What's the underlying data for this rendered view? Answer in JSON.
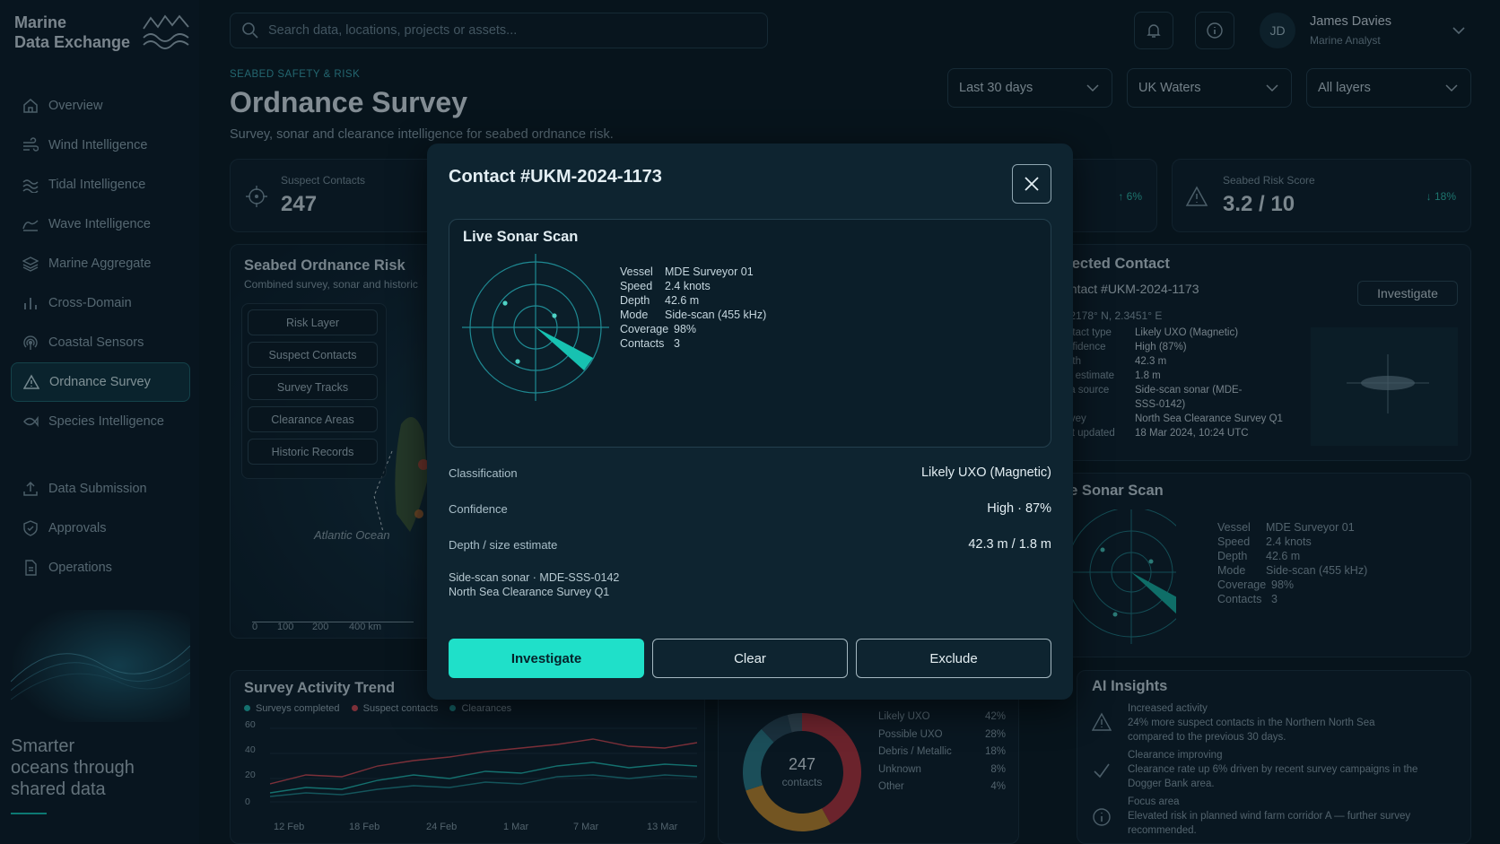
{
  "app": {
    "name_line1": "Marine",
    "name_line2": "Data Exchange",
    "tagline_1": "Smarter",
    "tagline_2": "oceans through",
    "tagline_3": "shared data"
  },
  "sidebar": {
    "items": [
      {
        "label": "Overview",
        "icon": "home-icon"
      },
      {
        "label": "Wind Intelligence",
        "icon": "wind-icon"
      },
      {
        "label": "Tidal Intelligence",
        "icon": "tide-icon"
      },
      {
        "label": "Wave Intelligence",
        "icon": "wave-icon"
      },
      {
        "label": "Marine Aggregate",
        "icon": "layers-icon"
      },
      {
        "label": "Cross-Domain",
        "icon": "bars-icon"
      },
      {
        "label": "Coastal Sensors",
        "icon": "sensor-icon"
      },
      {
        "label": "Ordnance Survey",
        "icon": "warning-icon"
      },
      {
        "label": "Species Intelligence",
        "icon": "fish-icon"
      },
      {
        "label": "Data Submission",
        "icon": "upload-icon"
      },
      {
        "label": "Approvals",
        "icon": "shield-check-icon"
      },
      {
        "label": "Operations",
        "icon": "document-icon"
      }
    ]
  },
  "header": {
    "search_placeholder": "Search data, locations, projects or assets...",
    "user_initials": "JD",
    "user_name": "James Davies",
    "user_role": "Marine Analyst"
  },
  "page": {
    "eyebrow": "SEABED SAFETY & RISK",
    "title": "Ordnance Survey",
    "subtitle": "Survey, sonar and clearance intelligence for seabed ordnance risk."
  },
  "filters": {
    "period": "Last 30 days",
    "region": "UK Waters",
    "layers": "All layers"
  },
  "kpis": {
    "suspect_label": "Suspect Contacts",
    "suspect_value": "247",
    "third_delta": "↑ 6%",
    "risk_label": "Seabed Risk Score",
    "risk_value": "3.2 / 10",
    "risk_delta": "↓ 18%"
  },
  "map": {
    "title": "Seabed Ordnance Risk",
    "subtitle": "Combined survey, sonar and historic",
    "layers": [
      "Risk Layer",
      "Suspect Contacts",
      "Survey Tracks",
      "Clearance Areas",
      "Historic Records"
    ],
    "ocean_label": "Atlantic Ocean",
    "scale": [
      "0",
      "100",
      "200",
      "400 km"
    ]
  },
  "selected": {
    "title": "elected Contact",
    "contact": "ontact #UKM-2024-1173",
    "investigate": "Investigate",
    "coords": ".2178° N, 2.3451° E",
    "rows": [
      {
        "k": "ntact type",
        "v": "Likely UXO (Magnetic)"
      },
      {
        "k": "nfidence",
        "v": "High (87%)"
      },
      {
        "k": "pth",
        "v": "42.3 m"
      },
      {
        "k": "e estimate",
        "v": "1.8 m"
      },
      {
        "k": "ta source",
        "v": "Side-scan sonar (MDE-"
      },
      {
        "k": "",
        "v": "SSS-0142)"
      },
      {
        "k": "rvey",
        "v": "North Sea Clearance Survey Q1"
      },
      {
        "k": "st updated",
        "v": "18 Mar 2024, 10:24 UTC"
      }
    ]
  },
  "bg_sonar": {
    "title": "ve Sonar Scan",
    "specs": [
      {
        "k": "Vessel",
        "v": "MDE Surveyor 01"
      },
      {
        "k": "Speed",
        "v": "2.4 knots"
      },
      {
        "k": "Depth",
        "v": "42.6 m"
      },
      {
        "k": "Mode",
        "v": "Side-scan (455 kHz)"
      },
      {
        "k": "Coverage",
        "v": "98%"
      },
      {
        "k": "Contacts",
        "v": "3"
      }
    ]
  },
  "trend": {
    "title": "Survey Activity Trend",
    "legend": [
      {
        "label": "Surveys completed",
        "color": "#1fb8b0"
      },
      {
        "label": "Suspect contacts",
        "color": "#d24a55"
      },
      {
        "label": "Clearances",
        "color": "#1fa0a0"
      }
    ],
    "y_ticks": [
      "60",
      "40",
      "20",
      "0"
    ],
    "x_ticks": [
      "12 Feb",
      "18 Feb",
      "24 Feb",
      "1 Mar",
      "7 Mar",
      "13 Mar"
    ]
  },
  "donut": {
    "total": "247",
    "unit": "contacts",
    "items": [
      {
        "label": "Likely UXO",
        "pct": "42%",
        "color": "#b5343e"
      },
      {
        "label": "Possible UXO",
        "pct": "28%",
        "color": "#c38a2e"
      },
      {
        "label": "Debris / Metallic",
        "pct": "18%",
        "color": "#2b7f8c"
      },
      {
        "label": "Unknown",
        "pct": "8%",
        "color": "#2a4b5c"
      },
      {
        "label": "Other",
        "pct": "4%",
        "color": "#44606e"
      }
    ]
  },
  "insights": {
    "title": "AI Insights",
    "items": [
      {
        "head": "Increased activity",
        "l1": "24% more suspect contacts in the Northern North Sea",
        "l2": "compared to the previous 30 days.",
        "icon": "warning-icon"
      },
      {
        "head": "Clearance improving",
        "l1": "Clearance rate up 6% driven by recent survey campaigns in the",
        "l2": "Dogger Bank area.",
        "icon": "check-icon"
      },
      {
        "head": "Focus area",
        "l1": "Elevated risk in planned wind farm corridor A — further survey",
        "l2": "recommended.",
        "icon": "info-icon"
      }
    ]
  },
  "modal": {
    "title": "Contact #UKM-2024-1173",
    "scan_title": "Live Sonar Scan",
    "specs": [
      {
        "k": "Vessel",
        "v": "MDE Surveyor 01"
      },
      {
        "k": "Speed",
        "v": "2.4 knots"
      },
      {
        "k": "Depth",
        "v": "42.6 m"
      },
      {
        "k": "Mode",
        "v": "Side-scan (455 kHz)"
      },
      {
        "k": "Coverage",
        "v": "98%"
      },
      {
        "k": "Contacts",
        "v": "3"
      }
    ],
    "rows": [
      {
        "k": "Classification",
        "v": "Likely UXO (Magnetic)"
      },
      {
        "k": "Confidence",
        "v": "High · 87%"
      },
      {
        "k": "Depth / size estimate",
        "v": "42.3 m / 1.8 m"
      }
    ],
    "source_1": "Side-scan sonar · MDE-SSS-0142",
    "source_2": "North Sea Clearance Survey Q1",
    "btn_investigate": "Investigate",
    "btn_clear": "Clear",
    "btn_exclude": "Exclude"
  }
}
